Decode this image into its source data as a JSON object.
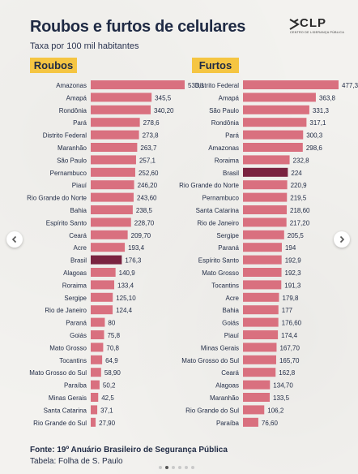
{
  "header": {
    "title": "Roubos e furtos de celulares",
    "subtitle": "Taxa por 100 mil habitantes"
  },
  "logo": {
    "word": "CLP",
    "tagline": "CENTRO DE LIDERANÇA PÚBLICA"
  },
  "footer": {
    "source": "Fonte: 19º Anuário Brasileiro de Segurança Pública",
    "table": "Tabela: Folha de S. Paulo"
  },
  "nav": {
    "prev_icon": "chevron-left-icon",
    "next_icon": "chevron-right-icon"
  },
  "colors": {
    "bar": "#d9707f",
    "highlight": "#7a2340",
    "label_bg": "#f5c542",
    "text": "#1f2a44"
  },
  "chart_data": [
    {
      "type": "bar",
      "orientation": "horizontal",
      "title": "Roubos",
      "highlight": "Brasil",
      "categories": [
        "Amazonas",
        "Amapá",
        "Rondônia",
        "Pará",
        "Distrito Federal",
        "Maranhão",
        "São Paulo",
        "Pernambuco",
        "Piauí",
        "Rio Grande do Norte",
        "Bahia",
        "Espírito Santo",
        "Ceará",
        "Acre",
        "Brasil",
        "Alagoas",
        "Roraima",
        "Sergipe",
        "Rio de Janeiro",
        "Paraná",
        "Goiás",
        "Mato Grosso",
        "Tocantins",
        "Mato Grosso do Sul",
        "Paraíba",
        "Minas Gerais",
        "Santa Catarina",
        "Rio Grande do Sul"
      ],
      "values": [
        533.1,
        345.5,
        340.2,
        278.6,
        273.8,
        263.7,
        257.1,
        252.6,
        246.2,
        243.6,
        238.5,
        228.7,
        209.7,
        193.4,
        176.3,
        140.9,
        133.4,
        125.1,
        124.4,
        80,
        75.8,
        70.8,
        64.9,
        58.9,
        50.2,
        42.5,
        37.1,
        27.9
      ],
      "value_labels": [
        "533,1",
        "345,5",
        "340,20",
        "278,6",
        "273,8",
        "263,7",
        "257,1",
        "252,60",
        "246,20",
        "243,60",
        "238,5",
        "228,70",
        "209,70",
        "193,4",
        "176,3",
        "140,9",
        "133,4",
        "125,10",
        "124,4",
        "80",
        "75,8",
        "70,8",
        "64,9",
        "58,90",
        "50,2",
        "42,5",
        "37,1",
        "27,90"
      ]
    },
    {
      "type": "bar",
      "orientation": "horizontal",
      "title": "Furtos",
      "highlight": "Brasil",
      "categories": [
        "Distrito Federal",
        "Amapá",
        "São Paulo",
        "Rondônia",
        "Pará",
        "Amazonas",
        "Roraima",
        "Brasil",
        "Rio Grande do Norte",
        "Pernambuco",
        "Santa Catarina",
        "Rio de Janeiro",
        "Sergipe",
        "Paraná",
        "Espírito Santo",
        "Mato Grosso",
        "Tocantins",
        "Acre",
        "Bahia",
        "Goiás",
        "Piauí",
        "Minas Gerais",
        "Mato Grosso do Sul",
        "Ceará",
        "Alagoas",
        "Maranhão",
        "Rio Grande do Sul",
        "Paraíba"
      ],
      "values": [
        477.3,
        363.8,
        331.3,
        317.1,
        300.3,
        298.6,
        232.8,
        224,
        220.9,
        219.5,
        218.6,
        217.2,
        205.5,
        194,
        192.9,
        192.3,
        191.3,
        179.8,
        177,
        176.6,
        174.4,
        167.7,
        165.7,
        162.8,
        134.7,
        133.5,
        106.2,
        76.6
      ],
      "value_labels": [
        "477,3",
        "363,8",
        "331,3",
        "317,1",
        "300,3",
        "298,6",
        "232,8",
        "224",
        "220,9",
        "219,5",
        "218,60",
        "217,20",
        "205,5",
        "194",
        "192,9",
        "192,3",
        "191,3",
        "179,8",
        "177",
        "176,60",
        "174,4",
        "167,70",
        "165,70",
        "162,8",
        "134,70",
        "133,5",
        "106,2",
        "76,60"
      ]
    }
  ]
}
